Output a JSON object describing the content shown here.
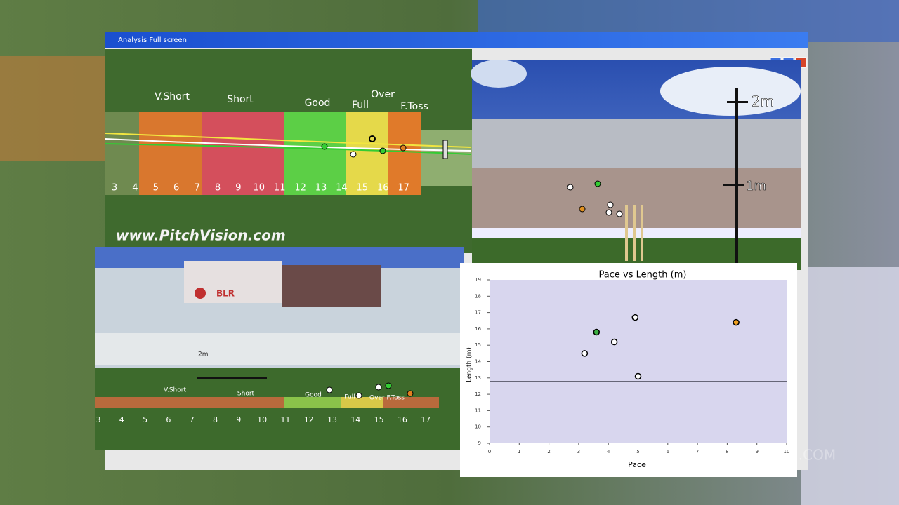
{
  "window": {
    "title": "Analysis Full screen"
  },
  "pitch_map": {
    "zones": [
      "V.Short",
      "Short",
      "Good",
      "Full",
      "Over",
      "F.Toss"
    ],
    "numbers": [
      3,
      4,
      5,
      6,
      7,
      8,
      9,
      10,
      11,
      12,
      13,
      14,
      15,
      16,
      17
    ],
    "website": "www.PitchVision.com"
  },
  "height_view": {
    "markers": [
      "2m",
      "1m"
    ]
  },
  "side_view": {
    "marker": "2m",
    "board": "BLR",
    "zones": [
      "V.Short",
      "Short",
      "Good",
      "Full",
      "Over F.Toss"
    ],
    "numbers": [
      3,
      4,
      5,
      6,
      7,
      8,
      9,
      10,
      11,
      12,
      13,
      14,
      15,
      16,
      17
    ]
  },
  "chart_data": {
    "type": "scatter",
    "title": "Pace vs Length (m)",
    "x_label": "Pace",
    "y_label": "Length (m)",
    "xlim": [
      0,
      10
    ],
    "xticks": [
      0,
      1,
      2,
      3,
      4,
      5,
      6,
      7,
      8,
      9,
      10
    ],
    "ylim": [
      9,
      19
    ],
    "yticks": [
      9,
      10,
      11,
      12,
      13,
      14,
      15,
      16,
      17,
      18,
      19
    ],
    "x": [
      3.2,
      3.6,
      4.2,
      4.9,
      5.0,
      8.3
    ],
    "y": [
      14.5,
      15.8,
      15.2,
      16.7,
      13.1,
      16.4
    ],
    "colors": [
      "#ffffff",
      "#3cb043",
      "#ffffff",
      "#ffffff",
      "#ffffff",
      "#f0a020"
    ],
    "hline": 12.8
  },
  "watermark": "PITCHVISION.COM"
}
